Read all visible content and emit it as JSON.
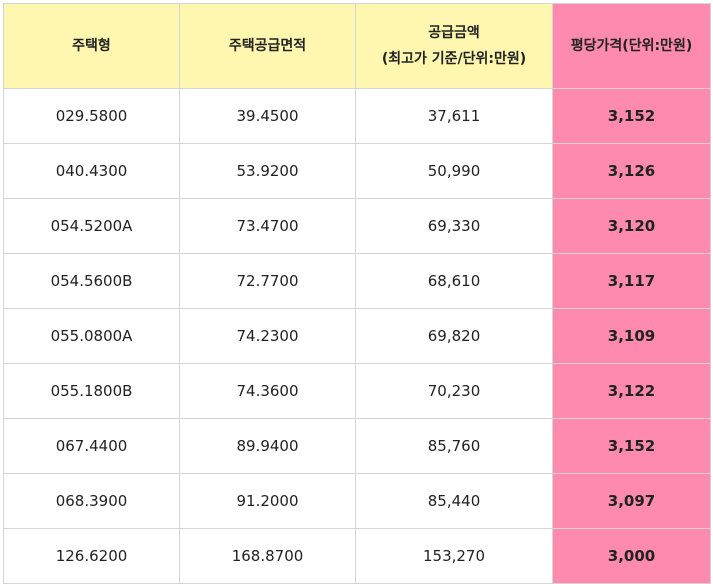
{
  "table": {
    "headers": {
      "type": "주택형",
      "area": "주택공급면적",
      "price_line1": "공급금액",
      "price_line2": "(최고가 기준/단위:만원)",
      "per_pyeong": "평당가격(단위:만원)"
    },
    "rows": [
      {
        "type": "029.5800",
        "area": "39.4500",
        "price": "37,611",
        "per_pyeong": "3,152"
      },
      {
        "type": "040.4300",
        "area": "53.9200",
        "price": "50,990",
        "per_pyeong": "3,126"
      },
      {
        "type": "054.5200A",
        "area": "73.4700",
        "price": "69,330",
        "per_pyeong": "3,120"
      },
      {
        "type": "054.5600B",
        "area": "72.7700",
        "price": "68,610",
        "per_pyeong": "3,117"
      },
      {
        "type": "055.0800A",
        "area": "74.2300",
        "price": "69,820",
        "per_pyeong": "3,109"
      },
      {
        "type": "055.1800B",
        "area": "74.3600",
        "price": "70,230",
        "per_pyeong": "3,122"
      },
      {
        "type": "067.4400",
        "area": "89.9400",
        "price": "85,760",
        "per_pyeong": "3,152"
      },
      {
        "type": "068.3900",
        "area": "91.2000",
        "price": "85,440",
        "per_pyeong": "3,097"
      },
      {
        "type": "126.6200",
        "area": "168.8700",
        "price": "153,270",
        "per_pyeong": "3,000"
      }
    ]
  },
  "colors": {
    "header_bg": "#fff7b0",
    "highlight_bg": "#ff8ab0",
    "border": "#d4d4d4"
  }
}
